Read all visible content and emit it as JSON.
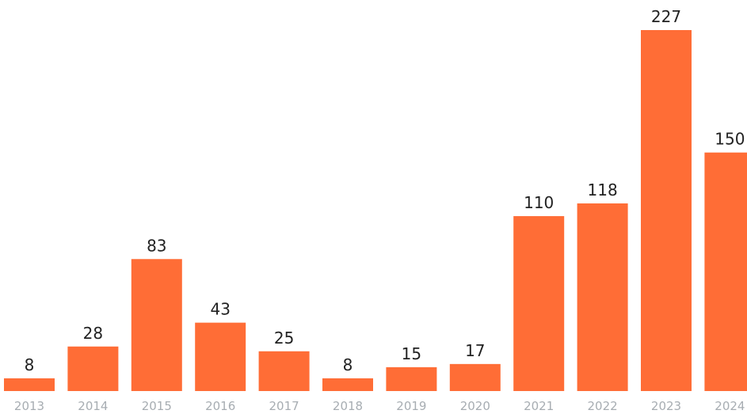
{
  "colors": {
    "bar": "#ff6d36",
    "value_label": "#222222",
    "tick_label": "#a7adb2",
    "background": "#ffffff"
  },
  "chart_data": {
    "type": "bar",
    "categories": [
      "2013",
      "2014",
      "2015",
      "2016",
      "2017",
      "2018",
      "2019",
      "2020",
      "2021",
      "2022",
      "2023",
      "2024"
    ],
    "values": [
      8,
      28,
      83,
      43,
      25,
      8,
      15,
      17,
      110,
      118,
      227,
      150
    ],
    "data_labels": [
      "8",
      "28",
      "83",
      "43",
      "25",
      "8",
      "15",
      "17",
      "110",
      "118",
      "227",
      "150"
    ],
    "title": "",
    "xlabel": "",
    "ylabel": "",
    "ylim": [
      0,
      227
    ],
    "grid": false,
    "legend": "none",
    "y_axis_visible": false
  }
}
